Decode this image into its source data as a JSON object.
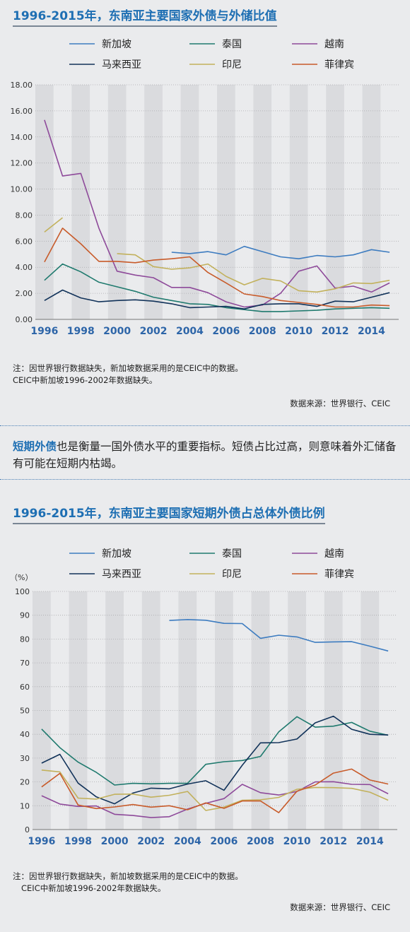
{
  "chart1": {
    "title": "1996-2015年，东南亚主要国家外债与外储比值",
    "note_line1": "注：因世界银行数据缺失，新加坡数据采用的是CEIC中的数据。",
    "note_line2": "CEIC中新加坡1996-2002年数据缺失。",
    "source": "数据来源：世界银行、CEIC"
  },
  "chart2": {
    "title": "1996-2015年，东南亚主要国家短期外债占总体外债比例",
    "note_line1": "注：因世界银行数据缺失，新加坡数据采用的是CEIC中的数据。",
    "note_line2": "CEIC中新加坡1996-2002年数据缺失。",
    "source": "数据来源：世界银行、CEIC"
  },
  "paragraph": {
    "highlight": "短期外债",
    "rest": "也是衡量一国外债水平的重要指标。短债占比过高，则意味着外汇储备有可能在短期内枯竭。"
  },
  "chart_data": [
    {
      "type": "line",
      "title": "1996-2015年，东南亚主要国家外债与外储比值",
      "x": [
        1996,
        1997,
        1998,
        1999,
        2000,
        2001,
        2002,
        2003,
        2004,
        2005,
        2006,
        2007,
        2008,
        2009,
        2010,
        2011,
        2012,
        2013,
        2014,
        2015
      ],
      "x_tick_labels": [
        "1996",
        "1998",
        "2000",
        "2002",
        "2004",
        "2006",
        "2008",
        "2010",
        "2012",
        "2014"
      ],
      "y_tick_labels": [
        "0.00",
        "2.00",
        "4.00",
        "6.00",
        "8.00",
        "10.00",
        "12.00",
        "14.00",
        "16.00",
        "18.00"
      ],
      "ylim": [
        0,
        18
      ],
      "legend_position": "top",
      "series": [
        {
          "name": "新加坡",
          "color": "#3d7cc0",
          "values": [
            null,
            null,
            null,
            null,
            null,
            null,
            null,
            5.15,
            5.05,
            5.2,
            4.95,
            5.6,
            5.2,
            4.8,
            4.65,
            4.9,
            4.8,
            4.95,
            5.35,
            5.15
          ]
        },
        {
          "name": "泰国",
          "color": "#1f7a6e",
          "values": [
            3.0,
            4.25,
            3.65,
            2.85,
            2.5,
            2.15,
            1.7,
            1.45,
            1.2,
            1.15,
            0.9,
            0.75,
            0.6,
            0.6,
            0.65,
            0.7,
            0.8,
            0.85,
            0.9,
            0.85
          ]
        },
        {
          "name": "越南",
          "color": "#8e4a9a",
          "values": [
            15.3,
            11.0,
            11.2,
            7.0,
            3.7,
            3.4,
            3.2,
            2.45,
            2.45,
            2.05,
            1.35,
            0.95,
            1.1,
            2.0,
            3.7,
            4.1,
            2.4,
            2.55,
            2.1,
            2.8
          ]
        },
        {
          "name": "马来西亚",
          "color": "#12335a",
          "values": [
            1.45,
            2.25,
            1.65,
            1.35,
            1.45,
            1.5,
            1.4,
            1.2,
            0.9,
            0.95,
            1.0,
            0.8,
            1.15,
            1.2,
            1.2,
            1.0,
            1.4,
            1.35,
            1.7,
            2.05
          ]
        },
        {
          "name": "印尼",
          "color": "#c2b15c",
          "values": [
            6.7,
            7.8,
            null,
            null,
            5.05,
            4.95,
            4.05,
            3.85,
            3.95,
            4.25,
            3.3,
            2.65,
            3.15,
            2.95,
            2.2,
            2.1,
            2.35,
            2.8,
            2.75,
            3.0
          ]
        },
        {
          "name": "菲律宾",
          "color": "#c85b2a",
          "values": [
            4.4,
            7.0,
            5.8,
            4.45,
            4.45,
            4.35,
            4.55,
            4.65,
            4.8,
            3.6,
            2.8,
            1.95,
            1.75,
            1.45,
            1.3,
            1.15,
            0.95,
            0.95,
            1.1,
            1.05
          ]
        }
      ]
    },
    {
      "type": "line",
      "title": "1996-2015年，东南亚主要国家短期外债占总体外债比例",
      "ylabel": "（%）",
      "x": [
        1996,
        1997,
        1998,
        1999,
        2000,
        2001,
        2002,
        2003,
        2004,
        2005,
        2006,
        2007,
        2008,
        2009,
        2010,
        2011,
        2012,
        2013,
        2014,
        2015
      ],
      "x_tick_labels": [
        "1996",
        "1998",
        "2000",
        "2002",
        "2004",
        "2006",
        "2008",
        "2010",
        "2012",
        "2014"
      ],
      "y_tick_labels": [
        "0",
        "10",
        "20",
        "30",
        "40",
        "50",
        "60",
        "70",
        "80",
        "90",
        "100"
      ],
      "ylim": [
        0,
        100
      ],
      "legend_position": "top",
      "series": [
        {
          "name": "新加坡",
          "color": "#3d7cc0",
          "values": [
            null,
            null,
            null,
            null,
            null,
            null,
            null,
            87.8,
            88.2,
            87.9,
            86.6,
            86.5,
            80.3,
            81.6,
            80.9,
            78.6,
            78.8,
            78.9,
            77.0,
            75.0
          ]
        },
        {
          "name": "泰国",
          "color": "#1f7a6e",
          "values": [
            42.2,
            34.4,
            28.3,
            24.0,
            18.7,
            19.4,
            19.2,
            19.4,
            19.4,
            27.4,
            28.5,
            29.0,
            30.7,
            41.0,
            47.4,
            43.0,
            43.4,
            45.0,
            41.3,
            39.6
          ]
        },
        {
          "name": "越南",
          "color": "#8e4a9a",
          "values": [
            14.2,
            10.7,
            9.7,
            9.9,
            6.4,
            5.9,
            5.0,
            5.4,
            8.6,
            11.0,
            13.0,
            19.0,
            15.5,
            14.5,
            16.0,
            20.0,
            20.1,
            19.0,
            18.9,
            15.0
          ]
        },
        {
          "name": "马来西亚",
          "color": "#12335a",
          "values": [
            27.9,
            31.6,
            19.5,
            13.7,
            10.8,
            15.3,
            17.4,
            17.1,
            19.1,
            20.5,
            16.5,
            27.0,
            36.4,
            36.5,
            38.0,
            44.8,
            47.6,
            42.1,
            40.0,
            39.7
          ]
        },
        {
          "name": "印尼",
          "color": "#c2b15c",
          "values": [
            25.0,
            24.2,
            13.2,
            12.8,
            14.8,
            14.9,
            13.6,
            14.4,
            16.0,
            8.0,
            9.4,
            12.3,
            12.5,
            13.5,
            16.9,
            17.7,
            17.6,
            17.3,
            15.7,
            12.3
          ]
        },
        {
          "name": "菲律宾",
          "color": "#c85b2a",
          "values": [
            17.9,
            23.6,
            10.3,
            8.8,
            9.5,
            10.5,
            9.4,
            10.0,
            8.3,
            11.2,
            8.9,
            12.0,
            12.0,
            7.1,
            16.1,
            18.7,
            23.7,
            25.4,
            20.8,
            19.1
          ]
        }
      ]
    }
  ]
}
